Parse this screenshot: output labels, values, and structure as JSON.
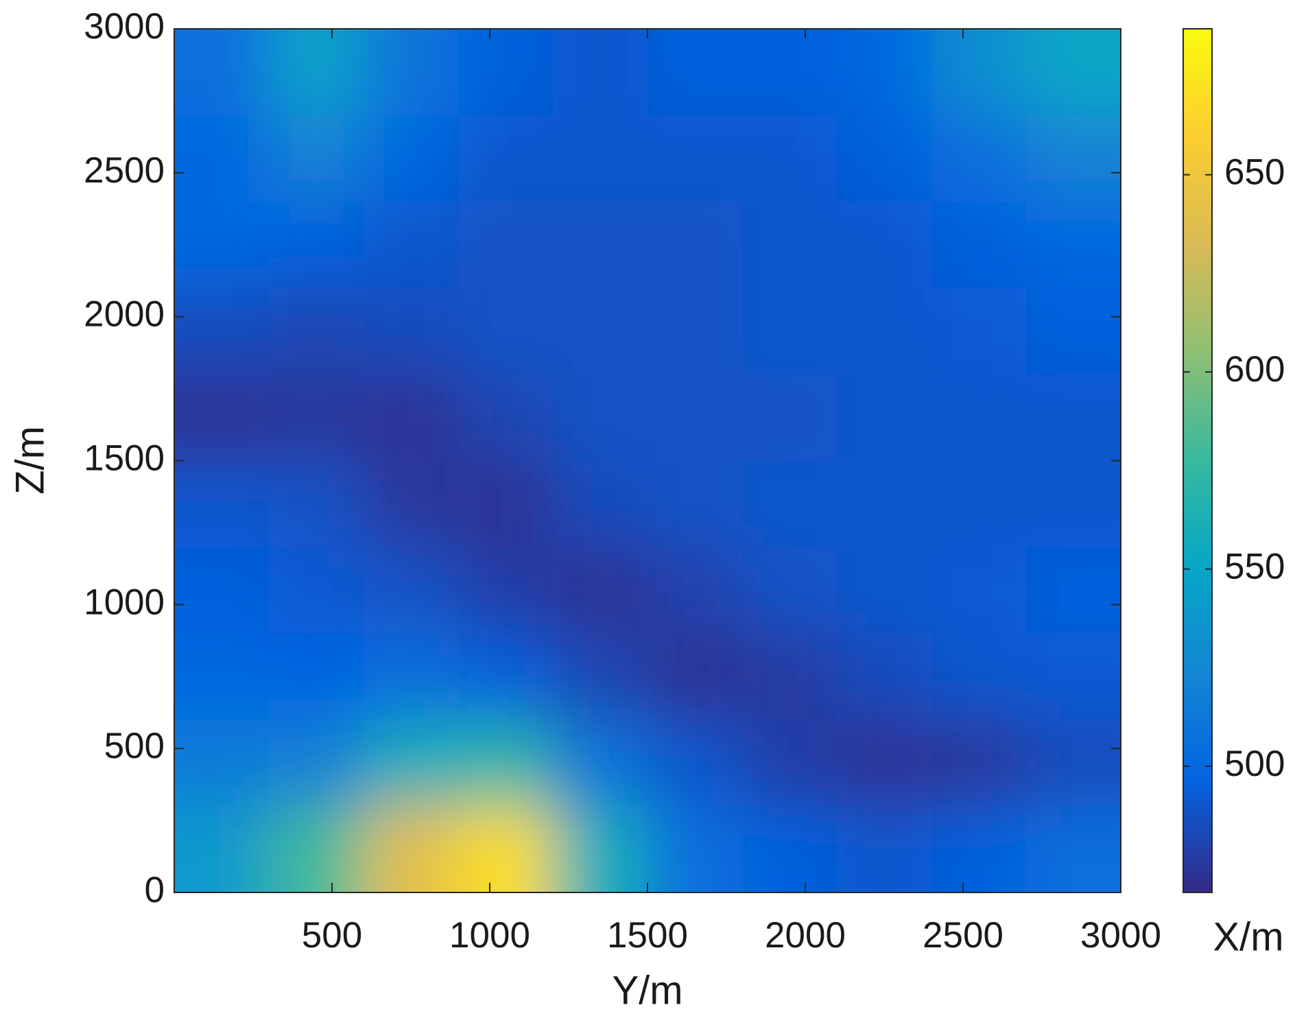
{
  "chart_data": {
    "type": "heatmap",
    "x_label": "Y/m",
    "y_label": "Z/m",
    "colorbar_label": "X/m",
    "xlim": [
      0,
      3000
    ],
    "xticks": [
      500,
      1000,
      1500,
      2000,
      2500,
      3000
    ],
    "ylim": [
      0,
      3000
    ],
    "yticks": [
      0,
      500,
      1000,
      1500,
      2000,
      2500,
      3000
    ],
    "x": [
      150,
      450,
      750,
      1050,
      1350,
      1650,
      1950,
      2250,
      2550,
      2850
    ],
    "y": [
      2850,
      2550,
      2250,
      1950,
      1650,
      1350,
      1050,
      750,
      450,
      150
    ],
    "z": [
      [
        505,
        545,
        510,
        495,
        490,
        495,
        495,
        500,
        530,
        550
      ],
      [
        500,
        520,
        500,
        490,
        490,
        490,
        490,
        495,
        505,
        520
      ],
      [
        500,
        495,
        490,
        488,
        488,
        488,
        490,
        490,
        495,
        500
      ],
      [
        485,
        482,
        485,
        488,
        488,
        488,
        490,
        490,
        492,
        495
      ],
      [
        472,
        475,
        472,
        482,
        488,
        488,
        488,
        490,
        490,
        490
      ],
      [
        490,
        488,
        475,
        472,
        485,
        488,
        490,
        490,
        490,
        490
      ],
      [
        495,
        492,
        488,
        478,
        472,
        480,
        488,
        490,
        492,
        495
      ],
      [
        500,
        498,
        505,
        495,
        482,
        472,
        476,
        485,
        490,
        492
      ],
      [
        515,
        520,
        560,
        570,
        510,
        490,
        478,
        472,
        475,
        485
      ],
      [
        540,
        580,
        640,
        670,
        560,
        505,
        495,
        490,
        495,
        505
      ]
    ],
    "clim": [
      468,
      687
    ],
    "cticks": [
      500,
      550,
      600,
      650
    ],
    "colormap": "parula"
  }
}
